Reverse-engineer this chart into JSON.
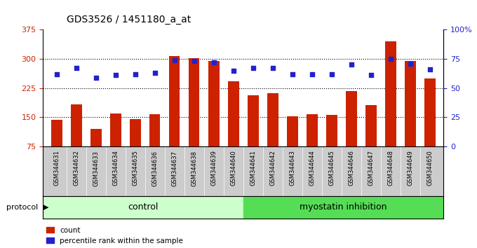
{
  "title": "GDS3526 / 1451180_a_at",
  "samples": [
    "GSM344631",
    "GSM344632",
    "GSM344633",
    "GSM344634",
    "GSM344635",
    "GSM344636",
    "GSM344637",
    "GSM344638",
    "GSM344639",
    "GSM344640",
    "GSM344641",
    "GSM344642",
    "GSM344643",
    "GSM344644",
    "GSM344645",
    "GSM344646",
    "GSM344647",
    "GSM344648",
    "GSM344649",
    "GSM344650"
  ],
  "count_values": [
    143,
    183,
    120,
    160,
    145,
    157,
    308,
    302,
    295,
    243,
    207,
    212,
    152,
    158,
    155,
    218,
    182,
    345,
    295,
    249
  ],
  "percentile_values": [
    62,
    67,
    59,
    61,
    62,
    63,
    74,
    73,
    72,
    65,
    67,
    67,
    62,
    62,
    62,
    70,
    61,
    75,
    71,
    66
  ],
  "control_count": 10,
  "myostatin_count": 10,
  "ylim_left": [
    75,
    375
  ],
  "ylim_right": [
    0,
    100
  ],
  "yticks_left": [
    75,
    150,
    225,
    300,
    375
  ],
  "yticks_right": [
    0,
    25,
    50,
    75,
    100
  ],
  "bar_color": "#cc2200",
  "square_color": "#2222cc",
  "control_bg": "#ccffcc",
  "myostatin_bg": "#55dd55",
  "label_bg": "#cccccc",
  "protocol_label": "protocol",
  "control_label": "control",
  "myostatin_label": "myostatin inhibition",
  "legend_count": "count",
  "legend_percentile": "percentile rank within the sample",
  "title_fontsize": 10,
  "tick_fontsize": 6.5,
  "bar_width": 0.55
}
